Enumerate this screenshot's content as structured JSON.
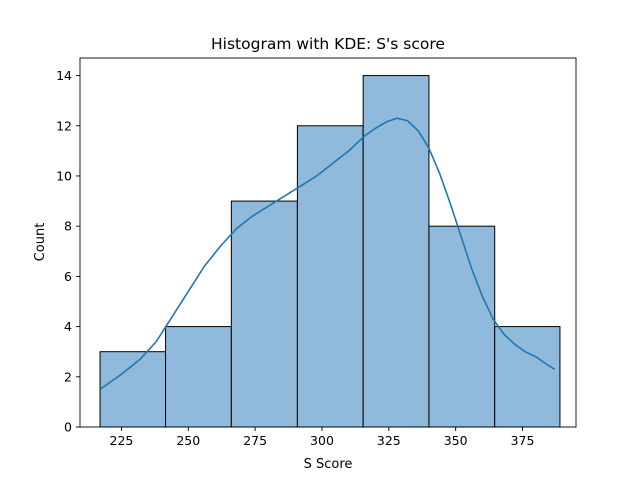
{
  "chart_data": {
    "type": "bar",
    "subtype": "histogram-with-kde",
    "title": "Histogram with KDE: S's score",
    "xlabel": "S Score",
    "ylabel": "Count",
    "xlim": [
      209.5,
      395
    ],
    "ylim": [
      0,
      14.7
    ],
    "xticks": [
      225,
      250,
      275,
      300,
      325,
      350,
      375
    ],
    "yticks": [
      0,
      2,
      4,
      6,
      8,
      10,
      12,
      14
    ],
    "bins": [
      {
        "start": 217.0,
        "end": 241.5,
        "count": 3
      },
      {
        "start": 241.5,
        "end": 266.1,
        "count": 4
      },
      {
        "start": 266.1,
        "end": 290.8,
        "count": 9
      },
      {
        "start": 290.8,
        "end": 315.4,
        "count": 12
      },
      {
        "start": 315.4,
        "end": 340.0,
        "count": 14
      },
      {
        "start": 340.0,
        "end": 364.6,
        "count": 8
      },
      {
        "start": 364.6,
        "end": 389.0,
        "count": 4
      }
    ],
    "kde": {
      "x": [
        217,
        225,
        232,
        238,
        244,
        250,
        256,
        262,
        268,
        274,
        280,
        286,
        292,
        298,
        304,
        310,
        316,
        320,
        324,
        328,
        332,
        336,
        340,
        344,
        348,
        352,
        356,
        360,
        364,
        368,
        372,
        376,
        380,
        384,
        387
      ],
      "y": [
        1.5,
        2.1,
        2.7,
        3.4,
        4.4,
        5.4,
        6.4,
        7.2,
        7.9,
        8.4,
        8.8,
        9.2,
        9.6,
        10.0,
        10.5,
        11.0,
        11.6,
        11.9,
        12.15,
        12.3,
        12.2,
        11.8,
        11.1,
        10.1,
        8.9,
        7.6,
        6.3,
        5.2,
        4.3,
        3.7,
        3.3,
        3.0,
        2.8,
        2.5,
        2.3
      ]
    },
    "grid": false,
    "legend": false,
    "colors": {
      "bar_fill": "#8fbadc",
      "bar_edge": "#000000",
      "kde_line": "#1f77b4"
    }
  }
}
